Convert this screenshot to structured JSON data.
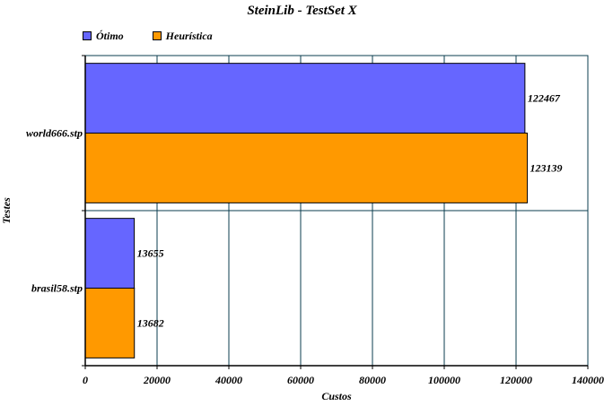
{
  "chart_data": {
    "type": "bar",
    "orientation": "horizontal",
    "title": "SteinLib - TestSet X",
    "xlabel": "Custos",
    "ylabel": "Testes",
    "categories": [
      "world666.stp",
      "brasil58.stp"
    ],
    "series": [
      {
        "name": "Ótimo",
        "values": [
          122467,
          13655
        ],
        "color": "#6666ff"
      },
      {
        "name": "Heurística",
        "values": [
          123139,
          13682
        ],
        "color": "#ff9900"
      }
    ],
    "xlim": [
      0,
      140000
    ],
    "xticks": [
      "0",
      "20000",
      "40000",
      "60000",
      "80000",
      "100000",
      "120000",
      "140000"
    ],
    "data_labels": [
      [
        "122467",
        "13655"
      ],
      [
        "123139",
        "13682"
      ]
    ],
    "grid": true,
    "legend_position": "top-left",
    "colors": {
      "grid": "#0b3d4f",
      "axis": "#000000"
    }
  }
}
